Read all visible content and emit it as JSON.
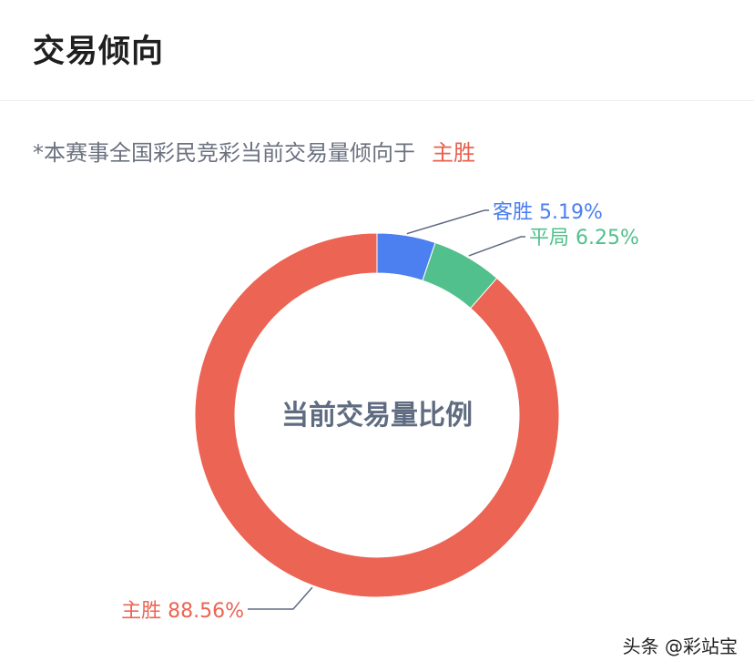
{
  "header": {
    "title": "交易倾向"
  },
  "subtitle": {
    "text": "*本赛事全国彩民竞彩当前交易量倾向于",
    "highlight": "主胜",
    "highlight_color": "#e8604e"
  },
  "watermark": "头条 @彩站宝",
  "chart_data": {
    "type": "pie",
    "variant": "donut",
    "center_label": "当前交易量比例",
    "series": [
      {
        "name": "客胜",
        "value": 5.19,
        "label": "客胜 5.19%",
        "color": "#4c7ff0"
      },
      {
        "name": "平局",
        "value": 6.25,
        "label": "平局 6.25%",
        "color": "#52c08c"
      },
      {
        "name": "主胜",
        "value": 88.56,
        "label": "主胜 88.56%",
        "color": "#ec6453"
      }
    ]
  }
}
